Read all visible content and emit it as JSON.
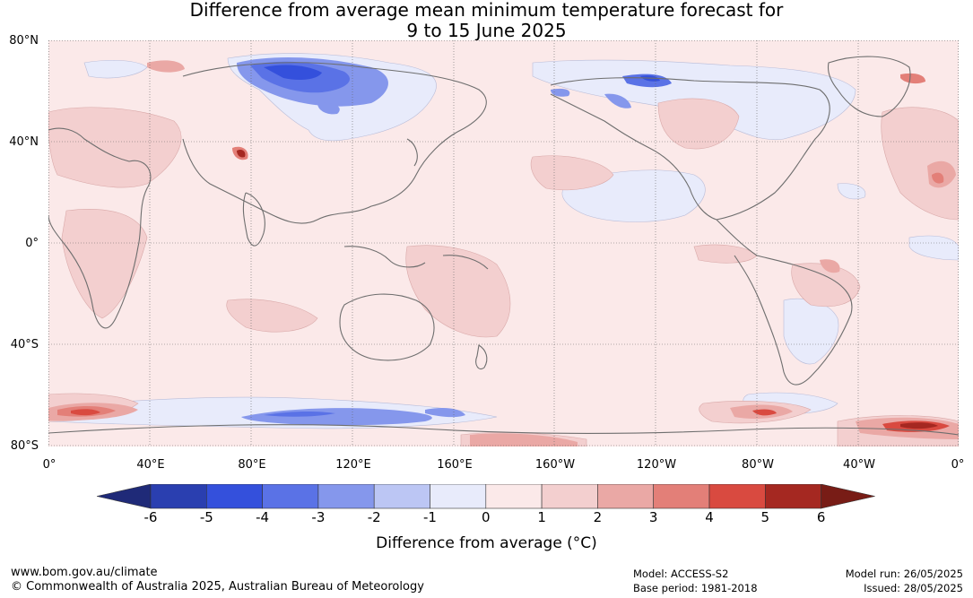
{
  "title": {
    "line1": "Difference from average mean minimum temperature forecast for",
    "line2": "9 to 15 June 2025"
  },
  "lat_labels": [
    "80°N",
    "40°N",
    "0°",
    "40°S",
    "80°S"
  ],
  "lon_labels": [
    "0°",
    "40°E",
    "80°E",
    "120°E",
    "160°E",
    "160°W",
    "120°W",
    "80°W",
    "40°W",
    "0°"
  ],
  "colorbar": {
    "ticks": [
      "-6",
      "-5",
      "-4",
      "-3",
      "-2",
      "-1",
      "0",
      "1",
      "2",
      "3",
      "4",
      "5",
      "6"
    ],
    "colors": [
      "#1f2a78",
      "#2a3fb0",
      "#3450dc",
      "#5a72e6",
      "#8597ec",
      "#bcc6f4",
      "#e8ebfb",
      "#fbe9e9",
      "#f3cfcf",
      "#eaa8a5",
      "#e37f78",
      "#d94a40",
      "#a52821",
      "#781c16"
    ],
    "title": "Difference from average (°C)"
  },
  "footer": {
    "url": "www.bom.gov.au/climate",
    "copyright": "© Commonwealth of Australia 2025, Australian Bureau of Meteorology",
    "model": "Model: ACCESS-S2",
    "base_period": "Base period: 1981-2018",
    "model_run": "Model run: 26/05/2025",
    "issued": "Issued: 28/05/2025"
  }
}
